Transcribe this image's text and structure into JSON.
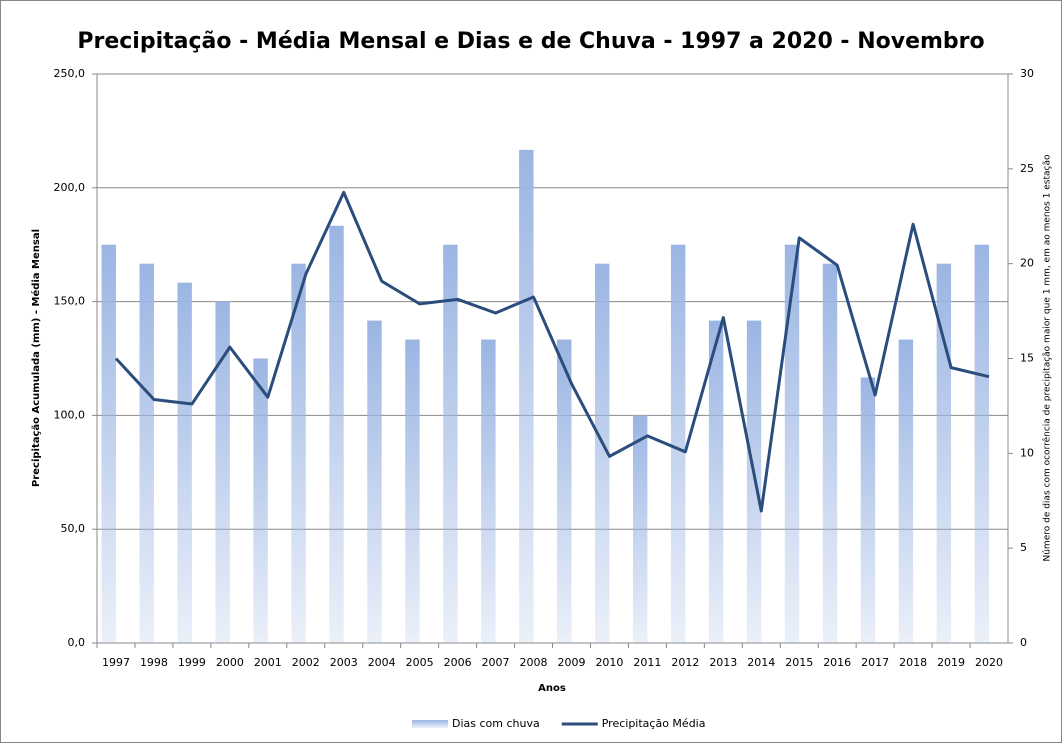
{
  "chart_data": {
    "type": "bar-line",
    "title": "Precipitação - Média Mensal e Dias e de Chuva - 1997 a 2020 - Novembro",
    "x_label": "Anos",
    "y_label": "Precipitação Acumulada (mm) - Média Mensal",
    "y2_label": "Número de dias com ocorrência de precipitação maior que 1 mm, em ao menos 1 estação",
    "categories": [
      "1997",
      "1998",
      "1999",
      "2000",
      "2001",
      "2002",
      "2003",
      "2004",
      "2005",
      "2006",
      "2007",
      "2008",
      "2009",
      "2010",
      "2011",
      "2012",
      "2013",
      "2014",
      "2015",
      "2016",
      "2017",
      "2018",
      "2019",
      "2020"
    ],
    "series": [
      {
        "name": "Dias com chuva",
        "type": "bar",
        "axis": "y2",
        "color": "#9bb5e3",
        "values": [
          21,
          20,
          19,
          18,
          15,
          20,
          22,
          17,
          16,
          21,
          16,
          26,
          16,
          20,
          12,
          21,
          17,
          17,
          21,
          20,
          14,
          16,
          20,
          21
        ]
      },
      {
        "name": "Precipitação Média",
        "type": "line",
        "axis": "y",
        "color": "#2b4d7c",
        "values": [
          125,
          107,
          105,
          130,
          108,
          162,
          198,
          159,
          149,
          151,
          145,
          152,
          114,
          82,
          91,
          84,
          143,
          58,
          178,
          166,
          109,
          184,
          121,
          117
        ]
      }
    ],
    "ylim": [
      0,
      250
    ],
    "yticks": [
      {
        "value": 0,
        "label": "0,0"
      },
      {
        "value": 50,
        "label": "50,0"
      },
      {
        "value": 100,
        "label": "100,0"
      },
      {
        "value": 150,
        "label": "150,0"
      },
      {
        "value": 200,
        "label": "200,0"
      },
      {
        "value": 250,
        "label": "250,0"
      }
    ],
    "y2lim": [
      0,
      30
    ],
    "y2ticks": [
      0,
      5,
      10,
      15,
      20,
      25,
      30
    ],
    "grid": true,
    "legend": "bottom"
  }
}
